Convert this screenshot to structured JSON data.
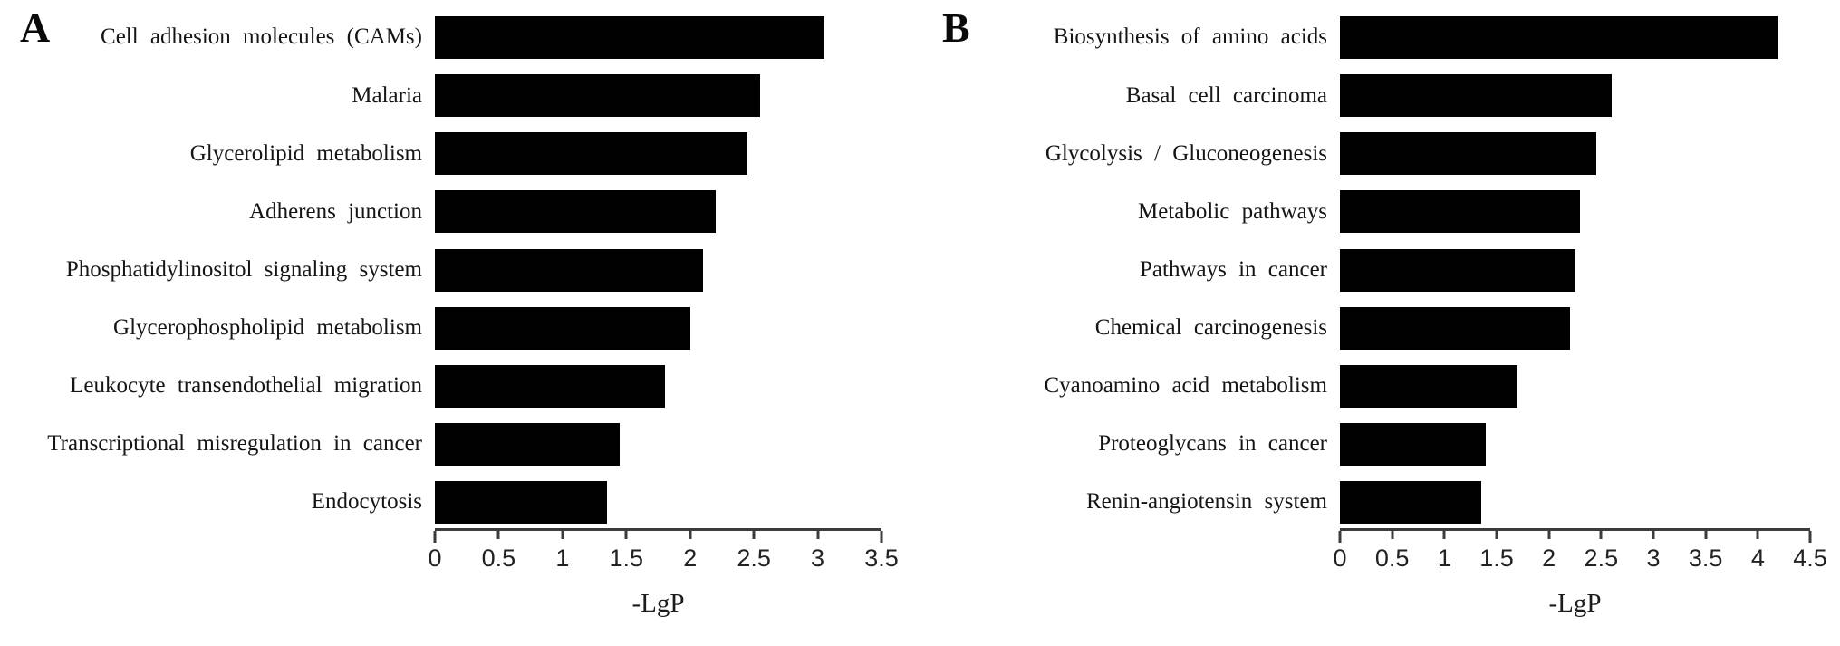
{
  "figure": {
    "background": "#ffffff",
    "bar_color": "#010101",
    "axis_color": "#3c3c3c",
    "text_color": "#151515"
  },
  "chart_data": [
    {
      "panel_label": "A",
      "type": "bar",
      "orientation": "horizontal",
      "categories": [
        "Cell adhesion molecules (CAMs)",
        "Malaria",
        "Glycerolipid metabolism",
        "Adherens junction",
        "Phosphatidylinositol signaling system",
        "Glycerophospholipid metabolism",
        "Leukocyte transendothelial migration",
        "Transcriptional misregulation in cancer",
        "Endocytosis"
      ],
      "values": [
        3.05,
        2.55,
        2.45,
        2.2,
        2.1,
        2.0,
        1.8,
        1.45,
        1.35
      ],
      "xlabel": "-LgP",
      "xlim": [
        0,
        3.5
      ],
      "xticks": [
        "0",
        "0.5",
        "1",
        "1.5",
        "2",
        "2.5",
        "3",
        "3.5"
      ],
      "legend": "none",
      "grid": "off"
    },
    {
      "panel_label": "B",
      "type": "bar",
      "orientation": "horizontal",
      "categories": [
        "Biosynthesis of amino acids",
        "Basal cell carcinoma",
        "Glycolysis / Gluconeogenesis",
        "Metabolic pathways",
        "Pathways in cancer",
        "Chemical carcinogenesis",
        "Cyanoamino acid metabolism",
        "Proteoglycans in cancer",
        "Renin-angiotensin system"
      ],
      "values": [
        4.2,
        2.6,
        2.45,
        2.3,
        2.25,
        2.2,
        1.7,
        1.4,
        1.35
      ],
      "xlabel": "-LgP",
      "xlim": [
        0,
        4.5
      ],
      "xticks": [
        "0",
        "0.5",
        "1",
        "1.5",
        "2",
        "2.5",
        "3",
        "3.5",
        "4",
        "4.5"
      ],
      "legend": "none",
      "grid": "off"
    }
  ]
}
